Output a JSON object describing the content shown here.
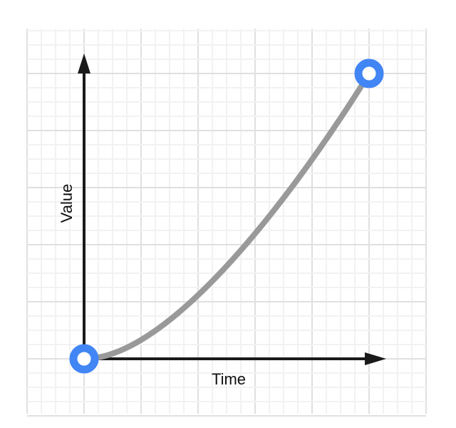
{
  "diagram": {
    "x_axis_label": "Time",
    "y_axis_label": "Value",
    "curve": {
      "type": "cubic-bezier",
      "control_points": [
        0.4,
        0,
        1,
        1
      ]
    },
    "colors": {
      "curve": "#999999",
      "endpoint": "#4285f4",
      "axis": "#1a1a1a",
      "grid_major": "#e0e0e0",
      "grid_minor": "#f2f2f2"
    }
  }
}
